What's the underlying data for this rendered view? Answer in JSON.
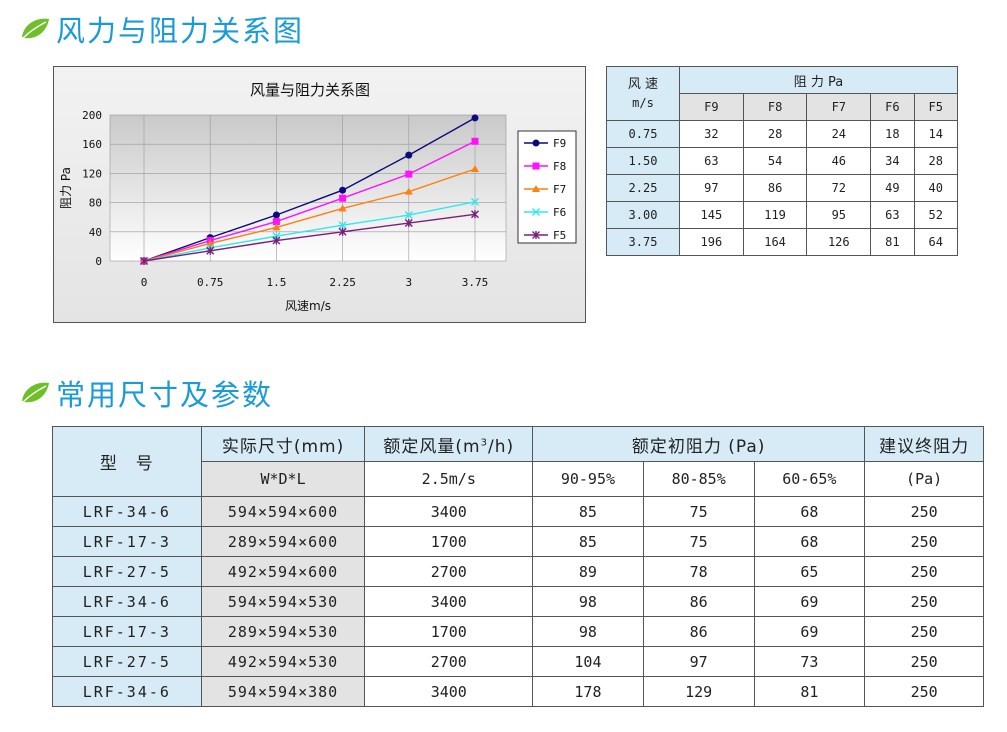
{
  "section1": {
    "title": "风力与阻力关系图",
    "icon": "leaf-icon"
  },
  "section2": {
    "title": "常用尺寸及参数",
    "icon": "leaf-icon"
  },
  "colors": {
    "accent": "#1a9bd7",
    "leaf": "#6fbf2a",
    "header_bg": "#d6ebf5"
  },
  "chart_data": {
    "type": "line",
    "title": "风量与阻力关系图",
    "xlabel": "风速m/s",
    "ylabel": "阻力 Pa",
    "categories": [
      "0",
      "0.75",
      "1.5",
      "2.25",
      "3",
      "3.75"
    ],
    "x": [
      0,
      0.75,
      1.5,
      2.25,
      3,
      3.75
    ],
    "ylim": [
      0,
      200
    ],
    "yticks": [
      "0",
      "40",
      "80",
      "120",
      "160",
      "200"
    ],
    "grid": true,
    "legend_position": "right",
    "series": [
      {
        "name": "F9",
        "color": "#0b0b7a",
        "marker": "circle",
        "values": [
          0,
          32,
          63,
          97,
          145,
          196
        ]
      },
      {
        "name": "F8",
        "color": "#ff10ff",
        "marker": "square",
        "values": [
          0,
          28,
          54,
          86,
          119,
          164
        ]
      },
      {
        "name": "F7",
        "color": "#ff7f10",
        "marker": "triangle",
        "values": [
          0,
          24,
          46,
          72,
          95,
          126
        ]
      },
      {
        "name": "F6",
        "color": "#30e8f0",
        "marker": "x",
        "values": [
          0,
          18,
          34,
          49,
          63,
          81
        ]
      },
      {
        "name": "F5",
        "color": "#7a1f7a",
        "marker": "star",
        "values": [
          0,
          14,
          28,
          40,
          52,
          64
        ]
      }
    ]
  },
  "table1": {
    "corner_label_1": "风 速",
    "corner_label_2": "m/s",
    "group_header": "阻 力 Pa",
    "columns": [
      "F9",
      "F8",
      "F7",
      "F6",
      "F5"
    ],
    "rows": [
      {
        "speed": "0.75",
        "values": [
          "32",
          "28",
          "24",
          "18",
          "14"
        ]
      },
      {
        "speed": "1.50",
        "values": [
          "63",
          "54",
          "46",
          "34",
          "28"
        ]
      },
      {
        "speed": "2.25",
        "values": [
          "97",
          "86",
          "72",
          "49",
          "40"
        ]
      },
      {
        "speed": "3.00",
        "values": [
          "145",
          "119",
          "95",
          "63",
          "52"
        ]
      },
      {
        "speed": "3.75",
        "values": [
          "196",
          "164",
          "126",
          "81",
          "64"
        ]
      }
    ]
  },
  "table2": {
    "header": {
      "model": "型　号",
      "size": "实际尺寸(mm)",
      "size_sub": "W*D*L",
      "airflow": "额定风量(m³/h)",
      "airflow_sub": "2.5m/s",
      "init_resist": "额定初阻力 (Pa)",
      "eff1": "90-95%",
      "eff2": "80-85%",
      "eff3": "60-65%",
      "final_resist": "建议终阻力",
      "final_resist_sub": "(Pa)"
    },
    "rows": [
      {
        "model": "LRF-34-6",
        "size": "594×594×600",
        "airflow": "3400",
        "r1": "85",
        "r2": "75",
        "r3": "68",
        "final": "250"
      },
      {
        "model": "LRF-17-3",
        "size": "289×594×600",
        "airflow": "1700",
        "r1": "85",
        "r2": "75",
        "r3": "68",
        "final": "250"
      },
      {
        "model": "LRF-27-5",
        "size": "492×594×600",
        "airflow": "2700",
        "r1": "89",
        "r2": "78",
        "r3": "65",
        "final": "250"
      },
      {
        "model": "LRF-34-6",
        "size": "594×594×530",
        "airflow": "3400",
        "r1": "98",
        "r2": "86",
        "r3": "69",
        "final": "250"
      },
      {
        "model": "LRF-17-3",
        "size": "289×594×530",
        "airflow": "1700",
        "r1": "98",
        "r2": "86",
        "r3": "69",
        "final": "250"
      },
      {
        "model": "LRF-27-5",
        "size": "492×594×530",
        "airflow": "2700",
        "r1": "104",
        "r2": "97",
        "r3": "73",
        "final": "250"
      },
      {
        "model": "LRF-34-6",
        "size": "594×594×380",
        "airflow": "3400",
        "r1": "178",
        "r2": "129",
        "r3": "81",
        "final": "250"
      }
    ]
  }
}
